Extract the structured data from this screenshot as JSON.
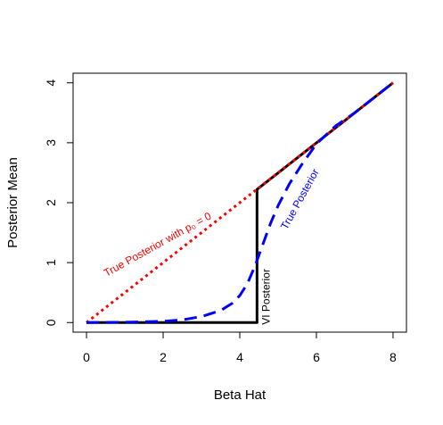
{
  "chart_data": {
    "type": "line",
    "title": "",
    "xlabel": "Beta Hat",
    "ylabel": "Posterior Mean",
    "xlim": [
      -0.35,
      8.35
    ],
    "ylim": [
      -0.16,
      4.16
    ],
    "x_ticks": [
      0,
      2,
      4,
      6,
      8
    ],
    "x_tick_labels": [
      "0",
      "2",
      "4",
      "6",
      "8"
    ],
    "y_ticks": [
      0,
      1,
      2,
      3,
      4
    ],
    "y_tick_labels": [
      "0",
      "1",
      "2",
      "3",
      "4"
    ],
    "grid": false,
    "legend": "none",
    "series": [
      {
        "key": "vi",
        "color": "#000000",
        "dash": "solid",
        "x": [
          0,
          4.45,
          4.45,
          4.45,
          8
        ],
        "y": [
          0,
          0,
          2.22,
          2.22,
          4
        ]
      },
      {
        "key": "true_p0",
        "color": "#ff0000",
        "dash": "dotted",
        "x": [
          0,
          8
        ],
        "y": [
          0,
          4
        ]
      },
      {
        "key": "true_posterior",
        "color": "#0000ff",
        "dash": "dashed",
        "x": [
          0,
          1,
          2,
          2.5,
          3,
          3.5,
          3.8,
          4.0,
          4.2,
          4.4,
          4.6,
          4.8,
          5.0,
          5.3,
          5.6,
          6.0,
          6.5,
          7.0,
          7.5,
          8.0
        ],
        "y": [
          0,
          0.005,
          0.02,
          0.045,
          0.1,
          0.2,
          0.32,
          0.45,
          0.65,
          0.95,
          1.3,
          1.65,
          1.95,
          2.32,
          2.62,
          2.98,
          3.28,
          3.5,
          3.75,
          4.0
        ]
      }
    ],
    "annotations": [
      {
        "key": "vi_label",
        "text": "VI Posterior",
        "color": "#000000",
        "x": 4.78,
        "y": 0.43,
        "angle": -90
      },
      {
        "key": "p0_label",
        "text": "True Posterior with p₀ = 0",
        "color": "#ff0000",
        "x": 1.9,
        "y": 1.25,
        "angle": -29
      },
      {
        "key": "true_label",
        "text": "True Posterior",
        "color": "#0000ff",
        "x": 5.65,
        "y": 2.03,
        "angle": -61
      }
    ]
  }
}
